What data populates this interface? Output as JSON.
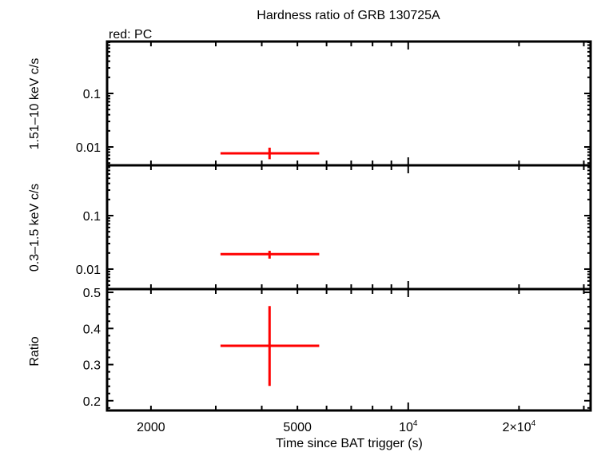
{
  "chart_data": {
    "type": "scatter",
    "title": "Hardness ratio of GRB 130725A",
    "legend_note": "red: PC",
    "xlabel": "Time since BAT trigger (s)",
    "x_scale": "log",
    "xlim": [
      1520,
      31300
    ],
    "x_ticks": [
      {
        "value": 2000,
        "label": "2000",
        "sup": ""
      },
      {
        "value": 5000,
        "label": "5000",
        "sup": ""
      },
      {
        "value": 10000,
        "label": "10",
        "sup": "4"
      },
      {
        "value": 20000,
        "label": "2×10",
        "sup": "4"
      }
    ],
    "series_color": "#ff0000",
    "panels": [
      {
        "ylabel": "1.51–10 keV c/s",
        "y_scale": "log",
        "ylim": [
          0.00454,
          0.933
        ],
        "y_ticks": [
          {
            "value": 0.1,
            "label": "0.1"
          },
          {
            "value": 0.01,
            "label": "0.01"
          }
        ],
        "points": [
          {
            "x": 4200,
            "x_lo": 3090,
            "x_hi": 5730,
            "y": 0.0076,
            "y_lo": 0.0059,
            "y_hi": 0.0097
          }
        ]
      },
      {
        "ylabel": "0.3–1.5 keV c/s",
        "y_scale": "log",
        "ylim": [
          0.00423,
          0.872
        ],
        "y_ticks": [
          {
            "value": 0.1,
            "label": "0.1"
          },
          {
            "value": 0.01,
            "label": "0.01"
          }
        ],
        "points": [
          {
            "x": 4200,
            "x_lo": 3090,
            "x_hi": 5730,
            "y": 0.019,
            "y_lo": 0.0157,
            "y_hi": 0.022
          }
        ]
      },
      {
        "ylabel": "Ratio",
        "y_scale": "linear",
        "ylim": [
          0.173,
          0.509
        ],
        "y_ticks": [
          {
            "value": 0.2,
            "label": "0.2"
          },
          {
            "value": 0.3,
            "label": "0.3"
          },
          {
            "value": 0.4,
            "label": "0.4"
          },
          {
            "value": 0.5,
            "label": "0.5"
          }
        ],
        "points": [
          {
            "x": 4200,
            "x_lo": 3090,
            "x_hi": 5730,
            "y": 0.352,
            "y_lo": 0.241,
            "y_hi": 0.462
          }
        ]
      }
    ]
  }
}
